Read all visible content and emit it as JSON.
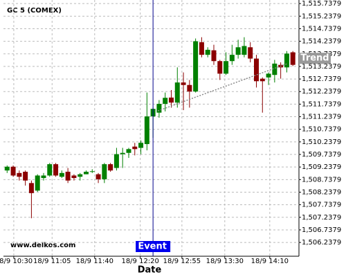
{
  "chart_data": {
    "type": "candlestick",
    "title": "GC 5 (COMEX)",
    "x_label": "Date",
    "watermark": "www.delkos.com",
    "up_color": "#008000",
    "down_color": "#8b0000",
    "grid": true,
    "open": [
      1509.1,
      1509.25,
      1509.0,
      1509.05,
      1508.6,
      1508.3,
      1508.8,
      1508.9,
      1509.35,
      1508.85,
      1509.05,
      1508.9,
      1508.85,
      1508.95,
      1509.05,
      1508.95,
      1508.75,
      1509.35,
      1509.2,
      1509.75,
      1509.8,
      1510.05,
      1510.0,
      1510.15,
      1511.25,
      1511.4,
      1511.75,
      1512.0,
      1511.8,
      1512.6,
      1512.5,
      1512.24,
      1514.2,
      1513.7,
      1513.88,
      1513.45,
      1512.95,
      1513.45,
      1513.7,
      1513.7,
      1514.0,
      1513.55,
      1512.75,
      1512.8,
      1512.9,
      1513.3,
      1513.2,
      1513.8
    ],
    "high": [
      1509.3,
      1509.3,
      1509.1,
      1509.1,
      1508.7,
      1508.95,
      1509.0,
      1509.4,
      1509.4,
      1509.1,
      1509.2,
      1508.95,
      1509.0,
      1509.1,
      1509.15,
      1509.0,
      1509.4,
      1509.4,
      1510.0,
      1510.0,
      1510.0,
      1510.2,
      1510.3,
      1512.2,
      1511.6,
      1511.9,
      1512.2,
      1512.3,
      1513.2,
      1513.0,
      1512.7,
      1514.35,
      1514.4,
      1514.0,
      1514.1,
      1513.5,
      1513.8,
      1514.1,
      1514.3,
      1514.4,
      1514.2,
      1513.7,
      1512.8,
      1513.0,
      1513.5,
      1513.4,
      1513.85,
      1513.85
    ],
    "low": [
      1509.0,
      1508.85,
      1508.7,
      1508.5,
      1507.2,
      1508.25,
      1508.7,
      1508.85,
      1508.85,
      1508.8,
      1508.6,
      1508.7,
      1508.7,
      1508.95,
      1509.0,
      1508.6,
      1508.6,
      1509.05,
      1509.1,
      1509.2,
      1509.6,
      1509.7,
      1509.75,
      1509.9,
      1510.4,
      1511.2,
      1511.45,
      1511.6,
      1511.6,
      1511.5,
      1511.6,
      1512.2,
      1513.6,
      1513.6,
      1513.3,
      1512.7,
      1512.9,
      1513.3,
      1513.55,
      1513.6,
      1513.4,
      1512.4,
      1511.4,
      1512.5,
      1512.6,
      1512.75,
      1513.0,
      1513.25
    ],
    "close": [
      1509.25,
      1508.9,
      1508.85,
      1508.7,
      1508.2,
      1508.9,
      1508.9,
      1509.35,
      1508.9,
      1509.0,
      1508.7,
      1508.8,
      1508.95,
      1509.05,
      1509.07,
      1508.75,
      1509.35,
      1509.1,
      1509.75,
      1509.8,
      1509.95,
      1509.95,
      1510.2,
      1511.25,
      1511.55,
      1511.75,
      1511.99,
      1511.8,
      1512.6,
      1512.5,
      1512.24,
      1514.24,
      1513.7,
      1513.9,
      1513.45,
      1512.95,
      1513.45,
      1513.7,
      1514.0,
      1514.05,
      1513.55,
      1512.65,
      1512.65,
      1512.95,
      1513.35,
      1513.2,
      1513.75,
      1513.3
    ],
    "xlim": [
      -0.6,
      48
    ],
    "xticks": [
      {
        "value": 1.1,
        "label": "18/9 10:30"
      },
      {
        "value": 7.4,
        "label": "18/9 11:05"
      },
      {
        "value": 14.4,
        "label": "18/9 11:40"
      },
      {
        "value": 21.9,
        "label": "18/9 12:20"
      },
      {
        "value": 28.75,
        "label": "18/9 12:55"
      },
      {
        "value": 35.8,
        "label": "18/9 13:30"
      },
      {
        "value": 43.2,
        "label": "18/9 14:10"
      }
    ],
    "ylim": [
      1505.69,
      1515.88
    ],
    "yticks": [
      {
        "value": 1506.2379,
        "label": "1,506.2379"
      },
      {
        "value": 1506.7379,
        "label": "1,506.7379"
      },
      {
        "value": 1507.2379,
        "label": "1,507.2379"
      },
      {
        "value": 1507.7379,
        "label": "1,507.7379"
      },
      {
        "value": 1508.2379,
        "label": "1,508.2379"
      },
      {
        "value": 1508.7379,
        "label": "1,508.7379"
      },
      {
        "value": 1509.2379,
        "label": "1,509.2379"
      },
      {
        "value": 1509.7379,
        "label": "1,509.7379"
      },
      {
        "value": 1510.2379,
        "label": "1,510.2379"
      },
      {
        "value": 1510.7379,
        "label": "1,510.7379"
      },
      {
        "value": 1511.2379,
        "label": "1,511.2379"
      },
      {
        "value": 1511.7379,
        "label": "1,511.7379"
      },
      {
        "value": 1512.2379,
        "label": "1,512.2379"
      },
      {
        "value": 1512.7379,
        "label": "1,512.7379"
      },
      {
        "value": 1513.2379,
        "label": "1,513.2379"
      },
      {
        "value": 1513.7379,
        "label": "1,513.7379"
      },
      {
        "value": 1514.2379,
        "label": "1,514.2379"
      },
      {
        "value": 1514.7379,
        "label": "1,514.7379"
      },
      {
        "value": 1515.2379,
        "label": "1,515.2379"
      },
      {
        "value": 1515.7379,
        "label": "1,515.7379"
      }
    ],
    "event": {
      "label": "Event",
      "x": 24
    },
    "trend": {
      "label": "Trend",
      "x": [
        24.8,
        46
      ],
      "y": [
        1511.47,
        1513.34
      ]
    }
  }
}
